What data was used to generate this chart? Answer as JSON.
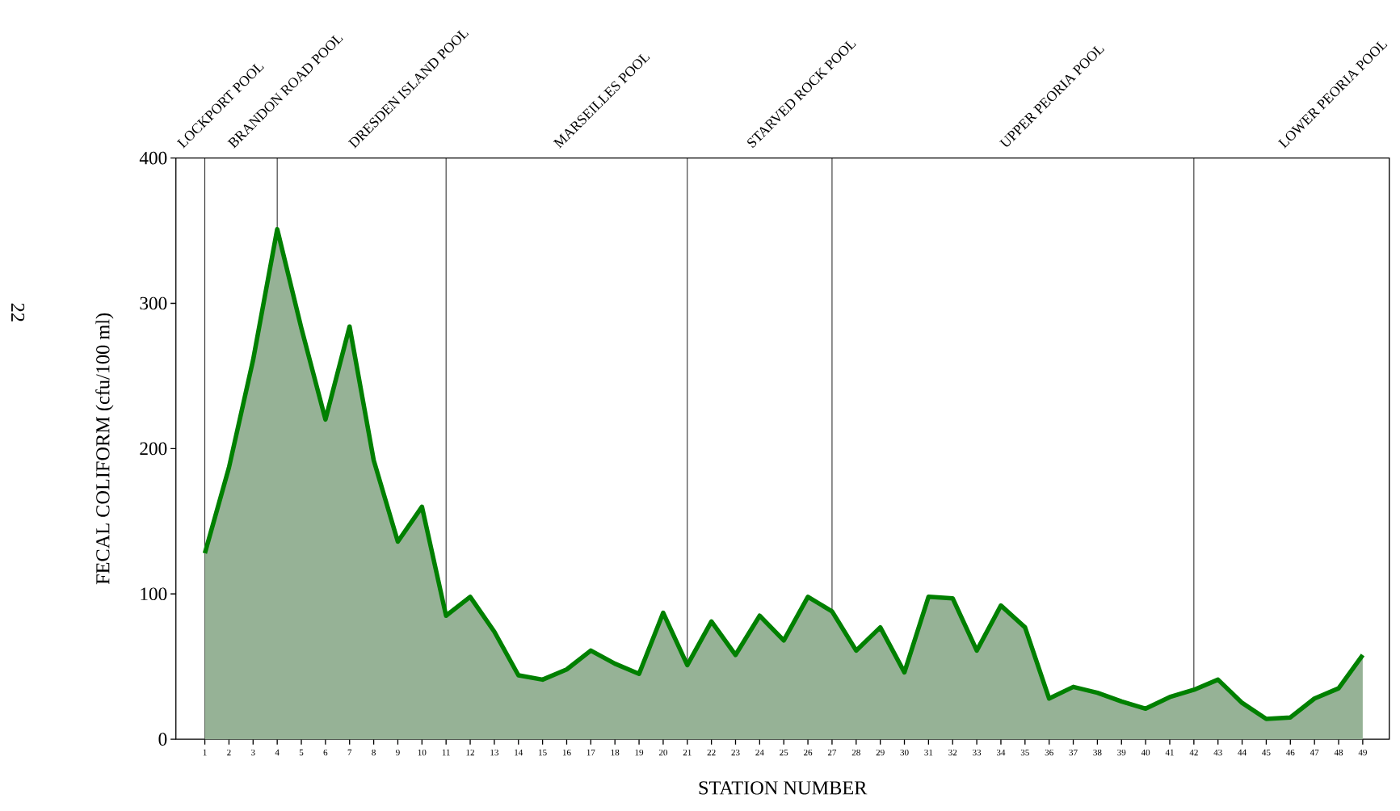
{
  "chart_data": {
    "type": "area",
    "xlabel": "STATION NUMBER",
    "ylabel": "FECAL COLIFORM (cfu/100 ml)",
    "categories": [
      "1",
      "2",
      "3",
      "4",
      "5",
      "6",
      "7",
      "8",
      "9",
      "10",
      "11",
      "12",
      "13",
      "14",
      "15",
      "16",
      "17",
      "18",
      "19",
      "20",
      "21",
      "22",
      "23",
      "24",
      "25",
      "26",
      "27",
      "28",
      "29",
      "30",
      "31",
      "32",
      "33",
      "34",
      "35",
      "36",
      "37",
      "38",
      "39",
      "40",
      "41",
      "42",
      "43",
      "44",
      "45",
      "46",
      "47",
      "48",
      "49"
    ],
    "series": [
      {
        "color": "#008000",
        "values": [
          128,
          187,
          261,
          351,
          283,
          220,
          284,
          192,
          136,
          160,
          85,
          98,
          74,
          44,
          41,
          48,
          61,
          52,
          45,
          87,
          51,
          81,
          58,
          85,
          68,
          98,
          88,
          61,
          77,
          46,
          98,
          97,
          61,
          92,
          77,
          28,
          36,
          32,
          26,
          21,
          29,
          34,
          41,
          25,
          14,
          15,
          28,
          35,
          58
        ]
      }
    ],
    "ylim": [
      0,
      400
    ],
    "yticks": [
      0,
      100,
      200,
      300,
      400
    ],
    "ref_lines": [
      {
        "axis": "x",
        "value": "1"
      },
      {
        "axis": "x",
        "value": "4"
      },
      {
        "axis": "x",
        "value": "11"
      },
      {
        "axis": "x",
        "value": "21"
      },
      {
        "axis": "x",
        "value": "27"
      },
      {
        "axis": "x",
        "value": "42"
      }
    ],
    "annotations": [
      "LOCKPORT POOL",
      "BRANDON ROAD POOL",
      "DRESDEN ISLAND POOL",
      "MARSEILLES POOL",
      "STARVED ROCK POOL",
      "UPPER PEORIA POOL",
      "LOWER PEORIA POOL",
      "22"
    ],
    "grid": false
  }
}
